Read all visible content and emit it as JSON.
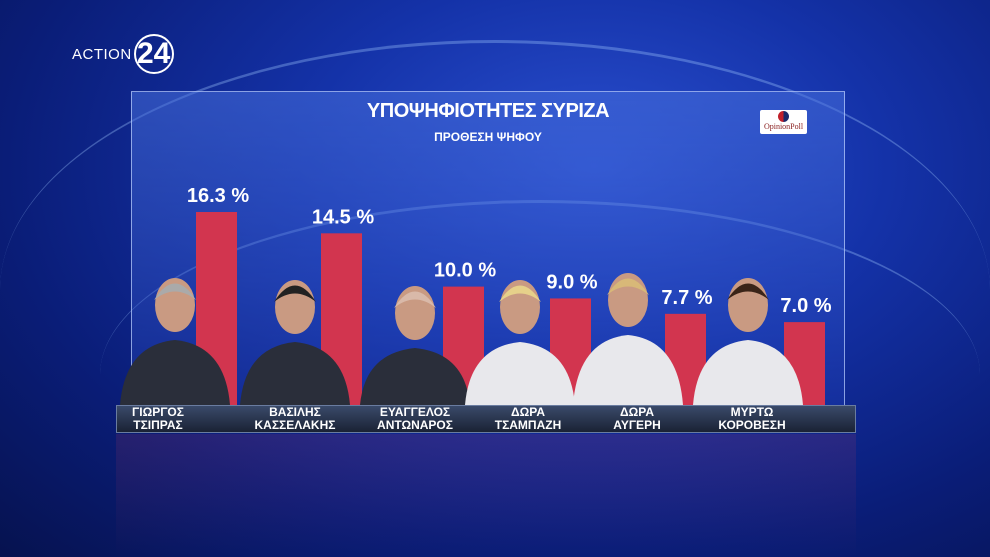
{
  "broadcaster": {
    "name": "ACTION",
    "number": "24"
  },
  "poll_logo": "OpinionPoll",
  "colors": {
    "bar": "#d2354f",
    "background": "#1432a8"
  },
  "chart_data": {
    "type": "bar",
    "title": "ΥΠΟΨΗΦΙΟΤΗΤΕΣ ΣΥΡΙΖΑ",
    "subtitle": "ΠΡΟΘΕΣΗ ΨΗΦΟΥ",
    "categories": [
      [
        "ΓΙΩΡΓΟΣ",
        "ΤΣΙΠΡΑΣ"
      ],
      [
        "ΒΑΣΙΛΗΣ",
        "ΚΑΣΣΕΛΑΚΗΣ"
      ],
      [
        "ΕΥΑΓΓΕΛΟΣ",
        "ΑΝΤΩΝΑΡΟΣ"
      ],
      [
        "ΔΩΡΑ",
        "ΤΣΑΜΠΑΖΗ"
      ],
      [
        "ΔΩΡΑ",
        "ΑΥΓΕΡΗ"
      ],
      [
        "ΜΥΡΤΩ",
        "ΚΟΡΟΒΕΣΗ"
      ]
    ],
    "values": [
      16.3,
      14.5,
      10.0,
      9.0,
      7.7,
      7.0
    ],
    "labels": [
      "16.3 %",
      "14.5 %",
      "10.0 %",
      "9.0 %",
      "7.7 %",
      "7.0 %"
    ],
    "unit": "%",
    "grid": false
  }
}
